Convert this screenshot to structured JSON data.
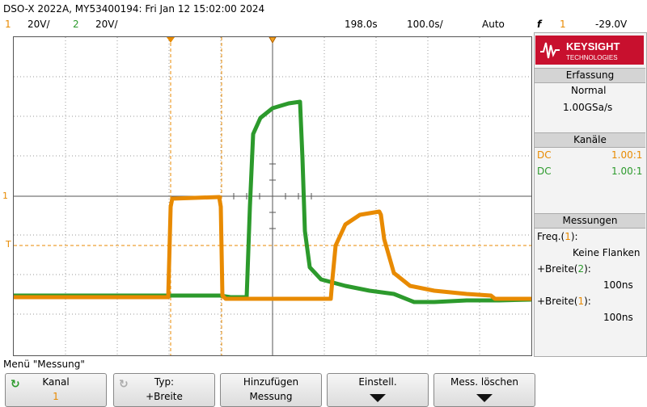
{
  "header": {
    "title": "DSO-X 2022A, MY53400194: Fri Jan 12 15:02:00 2024"
  },
  "channels_bar": {
    "ch1_num": "1",
    "ch1_scale": "20V/",
    "ch2_num": "2",
    "ch2_scale": "20V/",
    "time_scale": "198.0s",
    "delay": "100.0s/",
    "trigger_mode": "Auto",
    "trigger_symbol": "f",
    "trigger_channel": "1",
    "trigger_level": "-29.0V"
  },
  "logo": {
    "brand": "KEYSIGHT",
    "sub": "TECHNOLOGIES"
  },
  "acquisition": {
    "header": "Erfassung",
    "mode": "Normal",
    "rate": "1.00GSa/s"
  },
  "channels_panel": {
    "header": "Kanäle",
    "ch1_coupling": "DC",
    "ch1_probe": "1.00:1",
    "ch2_coupling": "DC",
    "ch2_probe": "1.00:1"
  },
  "measurements": {
    "header": "Messungen",
    "m1_prefix": "Freq.(",
    "m1_ch": "1",
    "m1_suffix": "):",
    "m1_value": "Keine Flanken",
    "m2_prefix": "+Breite(",
    "m2_ch": "2",
    "m2_suffix": "):",
    "m2_value": "100ns",
    "m3_prefix": "+Breite(",
    "m3_ch": "1",
    "m3_suffix": "):",
    "m3_value": "100ns"
  },
  "screen": {
    "ch1_marker": "1",
    "trigger_marker": "T"
  },
  "menu": {
    "title": "Menü \"Messung\"",
    "softkeys": [
      {
        "l1": "Kanal",
        "l2": "1"
      },
      {
        "l1": "Typ:",
        "l2": "+Breite"
      },
      {
        "l1": "Hinzufügen",
        "l2": "Messung"
      },
      {
        "l1": "Einstell.",
        "l2": ""
      },
      {
        "l1": "Mess. löschen",
        "l2": ""
      }
    ]
  },
  "colors": {
    "ch1": "#e88a00",
    "ch2": "#2c9a2c",
    "grid": "#888888"
  }
}
